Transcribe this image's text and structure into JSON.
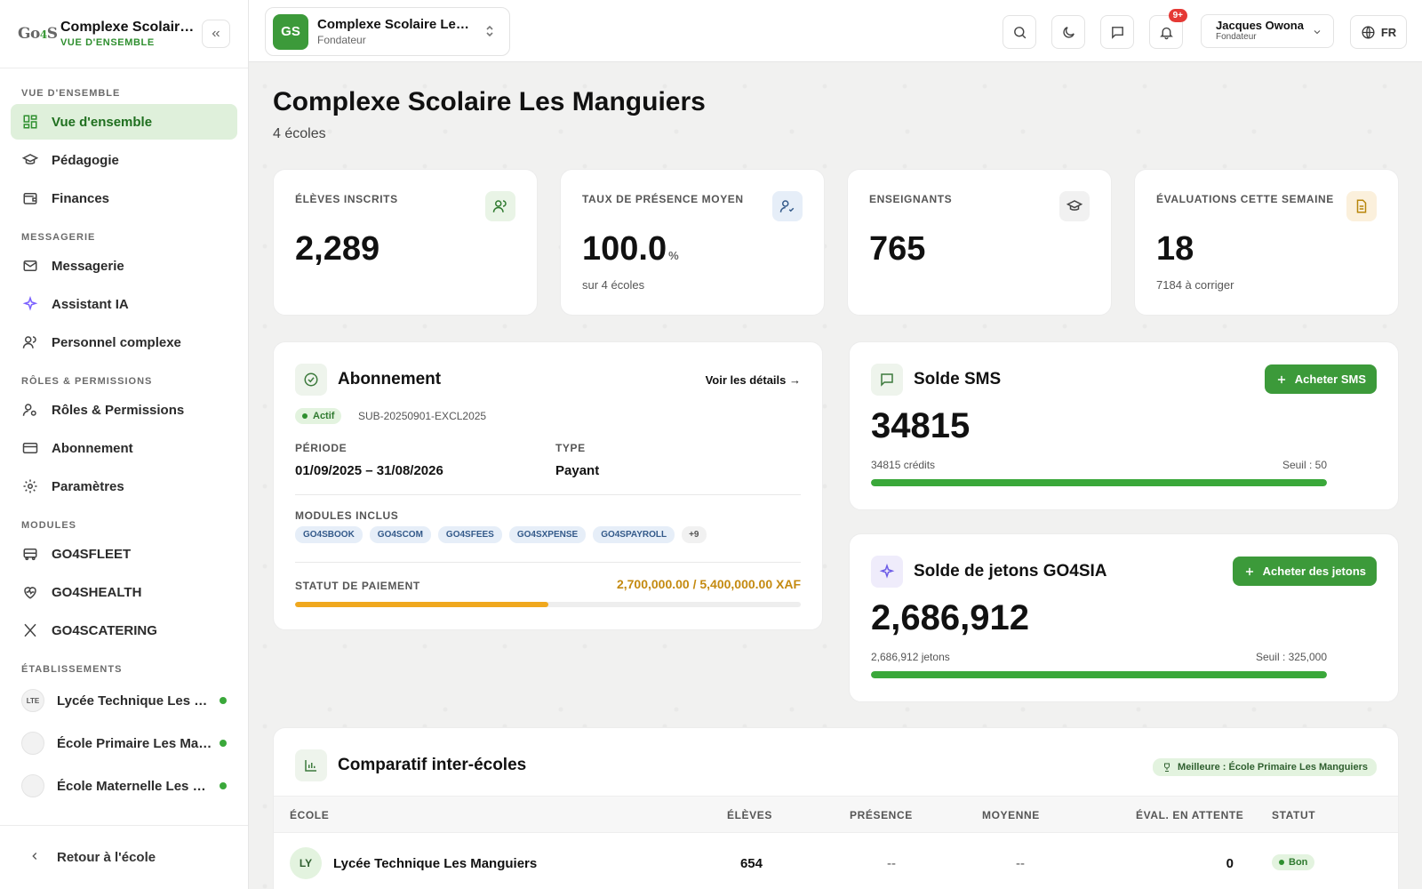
{
  "sidebar": {
    "logo_main": "Go",
    "logo_accent": "4",
    "logo_end": "S",
    "title": "Complexe Scolaire Les Manguiers",
    "subtitle": "VUE D'ENSEMBLE",
    "sections": {
      "overview": "VUE D'ENSEMBLE",
      "messaging": "MESSAGERIE",
      "roles": "RÔLES & PERMISSIONS",
      "modules": "MODULES",
      "schools": "ÉTABLISSEMENTS"
    },
    "items": {
      "overview": "Vue d'ensemble",
      "pedagogy": "Pédagogie",
      "finances": "Finances",
      "messaging": "Messagerie",
      "ai": "Assistant IA",
      "staff": "Personnel complexe",
      "roles": "Rôles & Permissions",
      "subscription": "Abonnement",
      "settings": "Paramètres",
      "fleet": "GO4SFLEET",
      "health": "GO4SHEALTH",
      "catering": "GO4SCATERING"
    },
    "schools": [
      {
        "badge": "LTE",
        "name": "Lycée Technique Les Manguiers"
      },
      {
        "badge": "",
        "name": "École Primaire Les Manguiers"
      },
      {
        "badge": "",
        "name": "École Maternelle Les Manguiers"
      }
    ],
    "back_label": "Retour à l'école"
  },
  "topbar": {
    "org_initials": "GS",
    "org_name": "Complexe Scolaire Les Manguiers",
    "org_role": "Fondateur",
    "notif_count": "9+",
    "user_name": "Jacques Owona",
    "user_role": "Fondateur",
    "lang": "FR"
  },
  "page": {
    "title": "Complexe Scolaire Les Manguiers",
    "subtitle": "4 écoles"
  },
  "stats": [
    {
      "label": "ÉLÈVES INSCRITS",
      "value": "2,289",
      "unit": "",
      "note": "",
      "icon": "users-icon",
      "icon_bg": "#e9f4e6",
      "icon_color": "#2f7a2f"
    },
    {
      "label": "TAUX DE PRÉSENCE MOYEN",
      "value": "100.0",
      "unit": "%",
      "note": "sur 4 écoles",
      "icon": "user-check-icon",
      "icon_bg": "#e6eef8",
      "icon_color": "#345a8a"
    },
    {
      "label": "ENSEIGNANTS",
      "value": "765",
      "unit": "",
      "note": "",
      "icon": "graduation-cap-icon",
      "icon_bg": "#f1f1f1",
      "icon_color": "#444444"
    },
    {
      "label": "ÉVALUATIONS CETTE SEMAINE",
      "value": "18",
      "unit": "",
      "note": "7184 à corriger",
      "icon": "document-icon",
      "icon_bg": "#fbf0dc",
      "icon_color": "#b8860b"
    }
  ],
  "subscription": {
    "title": "Abonnement",
    "details_link": "Voir les détails →",
    "status": "Actif",
    "code": "SUB-20250901-EXCL2025",
    "period_label": "PÉRIODE",
    "period_value": "01/09/2025 – 31/08/2026",
    "type_label": "TYPE",
    "type_value": "Payant",
    "modules_label": "MODULES INCLUS",
    "modules": [
      "GO4SBOOK",
      "GO4SCOM",
      "GO4SFEES",
      "GO4SXPENSE",
      "GO4SPAYROLL"
    ],
    "modules_more": "+9",
    "payment_label": "STATUT DE PAIEMENT",
    "payment_value": "2,700,000.00 / 5,400,000.00 XAF",
    "payment_fraction": 0.5,
    "payment_color": "#f0a81e"
  },
  "sms": {
    "title": "Solde SMS",
    "button": "Acheter SMS",
    "value": "34815",
    "credits": "34815 crédits",
    "threshold": "Seuil : 50",
    "fraction": 1.0
  },
  "tokens": {
    "title": "Solde de jetons GO4SIA",
    "button": "Acheter des jetons",
    "value": "2,686,912",
    "credits": "2,686,912 jetons",
    "threshold": "Seuil : 325,000",
    "fraction": 1.0
  },
  "comparison": {
    "title": "Comparatif inter-écoles",
    "best": "Meilleure : École Primaire Les Manguiers",
    "columns": {
      "school": "ÉCOLE",
      "students": "ÉLÈVES",
      "presence": "PRÉSENCE",
      "average": "MOYENNE",
      "pending": "ÉVAL. EN ATTENTE",
      "status": "STATUT"
    },
    "rows": [
      {
        "initials": "LY",
        "school": "Lycée Technique Les Manguiers",
        "students": "654",
        "presence": "--",
        "average": "--",
        "pending": "0",
        "status": "Bon"
      }
    ]
  },
  "colors": {
    "accent": "#3c9a3a",
    "bar_green": "#3aa83a"
  }
}
